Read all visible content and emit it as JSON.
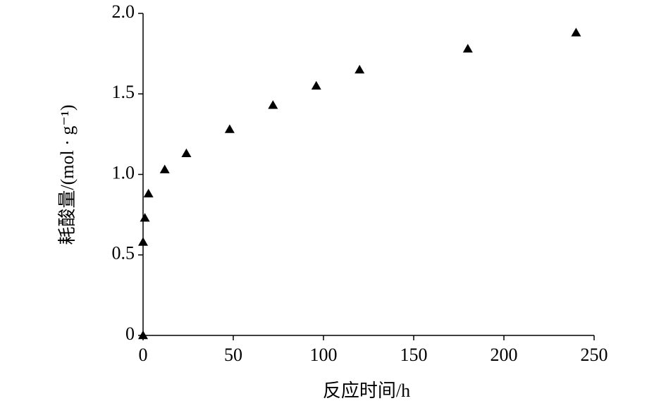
{
  "chart_data": {
    "type": "scatter",
    "x_label": "反应时间/h",
    "y_label": "耗酸量/(mol · g⁻¹)",
    "x": [
      0,
      0,
      1,
      3,
      12,
      24,
      48,
      72,
      96,
      120,
      180,
      240
    ],
    "values": [
      0,
      0.58,
      0.73,
      0.88,
      1.03,
      1.13,
      1.28,
      1.43,
      1.55,
      1.65,
      1.78,
      1.88
    ],
    "color": "#000000",
    "marker": "triangle",
    "xlim": [
      0,
      250
    ],
    "xticks": [
      0,
      50,
      100,
      150,
      200,
      250
    ],
    "ylim": [
      0,
      2
    ],
    "yticks": [
      0,
      0.5,
      {
        "value": 1,
        "label": "1.0"
      },
      1.5,
      {
        "value": 2,
        "label": "2.0"
      }
    ],
    "grid": false
  }
}
